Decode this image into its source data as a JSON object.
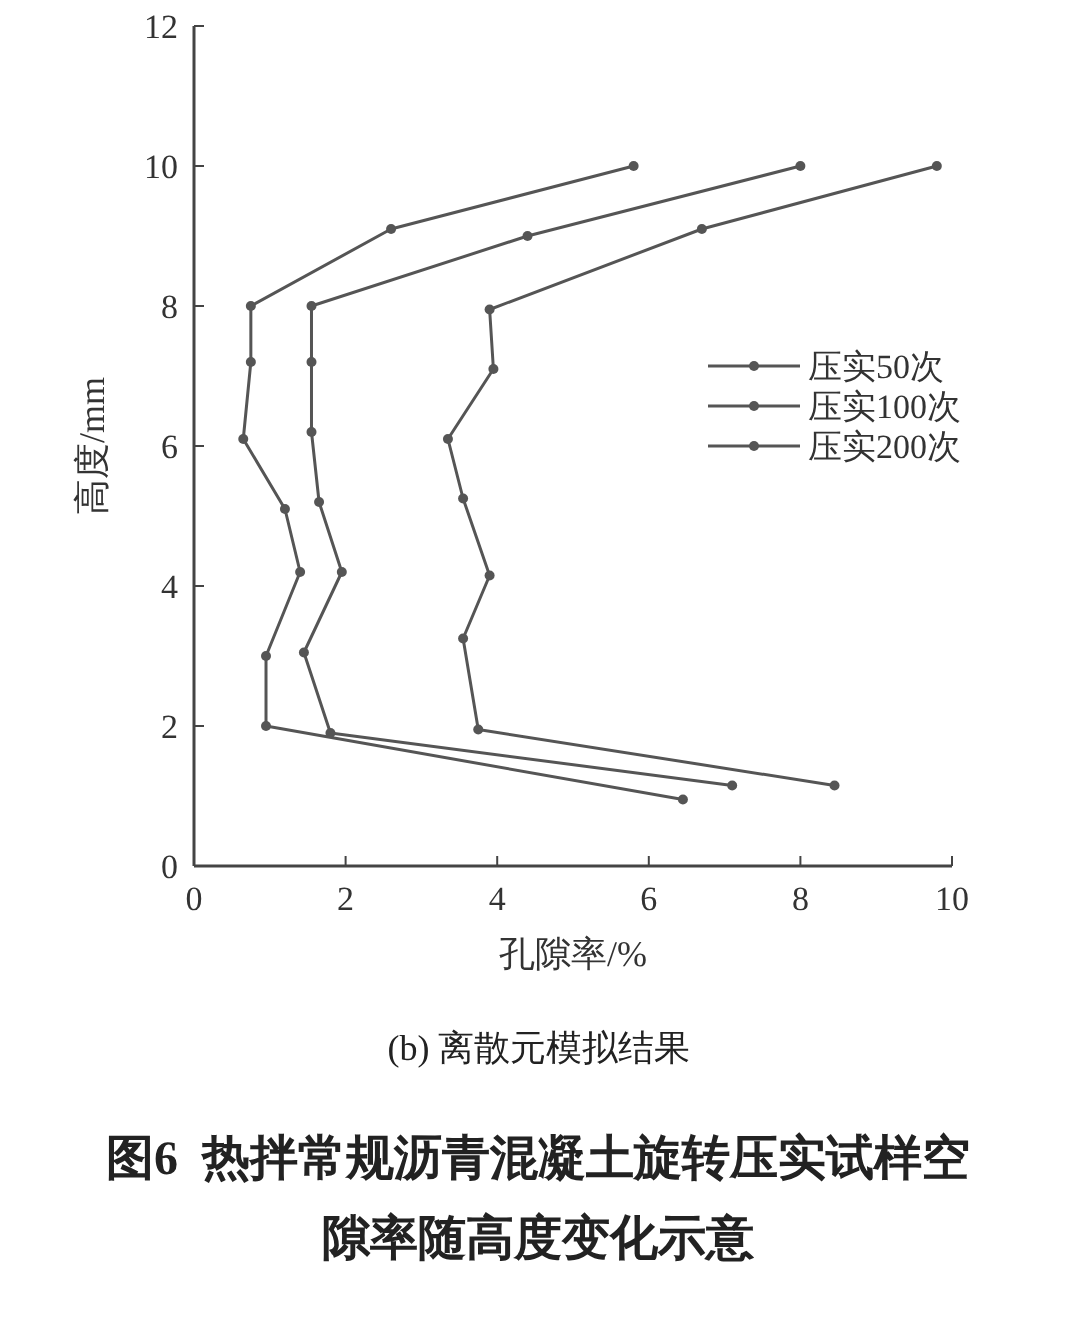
{
  "chart_data": {
    "type": "line",
    "title": "图6  热拌常规沥青混凝土旋转压实试样空隙率随高度变化示意",
    "subtitle": "(b) 离散元模拟结果",
    "xlabel": "孔隙率/%",
    "ylabel": "高度/mm",
    "xlim": [
      0,
      10
    ],
    "ylim": [
      0,
      12
    ],
    "xticks": [
      0,
      2,
      4,
      6,
      8,
      10
    ],
    "yticks": [
      0,
      2,
      4,
      6,
      8,
      10,
      12
    ],
    "marker": "circle",
    "line_style": "solid",
    "legend": "right",
    "series": [
      {
        "name": "压实50次",
        "color": "#555555",
        "x": [
          5.8,
          2.6,
          0.75,
          0.75,
          0.65,
          1.2,
          1.4,
          0.95,
          0.95,
          6.45
        ],
        "values": [
          10,
          9.1,
          8,
          7.2,
          6.1,
          5.1,
          4.2,
          3,
          2,
          0.95
        ]
      },
      {
        "name": "压实100次",
        "color": "#555555",
        "x": [
          8.0,
          4.4,
          1.55,
          1.55,
          1.55,
          1.65,
          1.95,
          1.45,
          1.8,
          7.1
        ],
        "values": [
          10,
          9,
          8,
          7.2,
          6.2,
          5.2,
          4.2,
          3.05,
          1.9,
          1.15
        ]
      },
      {
        "name": "压实200次",
        "color": "#555555",
        "x": [
          9.8,
          6.7,
          3.9,
          3.95,
          3.35,
          3.55,
          3.9,
          3.55,
          3.75,
          8.45
        ],
        "values": [
          10,
          9.1,
          7.95,
          7.1,
          6.1,
          5.25,
          4.15,
          3.25,
          1.95,
          1.15
        ]
      }
    ]
  }
}
